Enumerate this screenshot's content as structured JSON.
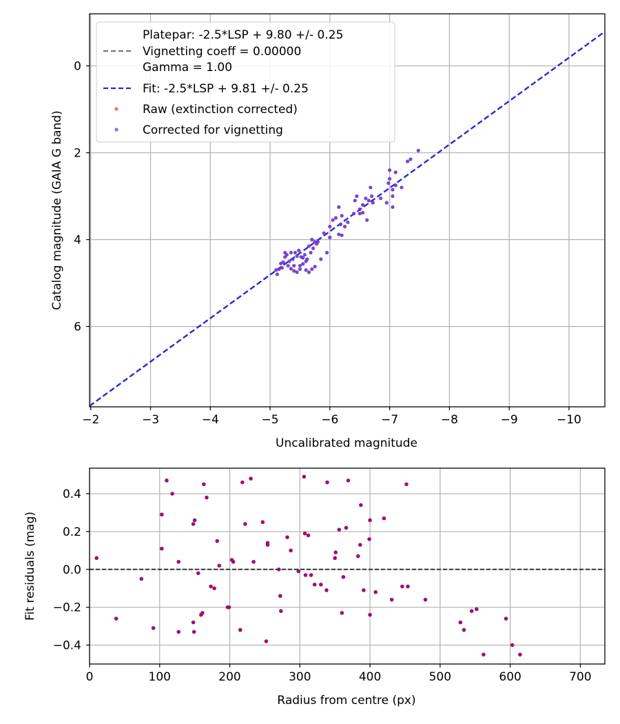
{
  "colors": {
    "fit_line": "#2727d6",
    "platepar_line": "#777777",
    "raw_points": "#ff3030",
    "corrected_points": "#3b3bff",
    "overlap_points": "#5a10c0",
    "residual_points": "#a0106a",
    "zero_line": "#333333",
    "grid": "#b0b0b0"
  },
  "chart_data": [
    {
      "type": "scatter",
      "xlabel": "Uncalibrated magnitude",
      "ylabel": "Catalog magnitude (GAIA G band)",
      "xlim": [
        -1.98,
        -10.6
      ],
      "ylim": [
        -1.2,
        7.85
      ],
      "x_ticks": [
        -2,
        -3,
        -4,
        -5,
        -6,
        -7,
        -8,
        -9,
        -10
      ],
      "x_tick_labels": [
        "−2",
        "−3",
        "−4",
        "−5",
        "−6",
        "−7",
        "−8",
        "−9",
        "−10"
      ],
      "y_ticks": [
        0,
        2,
        4,
        6
      ],
      "y_tick_labels": [
        "0",
        "2",
        "4",
        "6"
      ],
      "grid": true,
      "legend": {
        "position": "upper-left",
        "entries": [
          {
            "label": "Platepar: -2.5*LSP + 9.80 +/- 0.25",
            "kind": "none"
          },
          {
            "label": "Vignetting coeff = 0.00000",
            "kind": "gray-dashed"
          },
          {
            "label": "Gamma = 1.00",
            "kind": "none"
          },
          {
            "label": "Fit: -2.5*LSP + 9.81 +/- 0.25",
            "kind": "blue-dashed"
          },
          {
            "label": "Raw (extinction corrected)",
            "kind": "red-dot"
          },
          {
            "label": "Corrected for vignetting",
            "kind": "blue-dot"
          }
        ]
      },
      "fit": {
        "slope": 1.0,
        "intercept": 9.81
      },
      "platepar": {
        "slope": 1.0,
        "intercept": 9.8
      },
      "points": [
        [
          -5.1,
          4.7
        ],
        [
          -5.15,
          4.68
        ],
        [
          -5.2,
          4.65
        ],
        [
          -5.25,
          4.3
        ],
        [
          -5.18,
          4.55
        ],
        [
          -5.22,
          4.52
        ],
        [
          -5.3,
          4.6
        ],
        [
          -5.35,
          4.67
        ],
        [
          -5.4,
          4.72
        ],
        [
          -5.45,
          4.75
        ],
        [
          -5.5,
          4.6
        ],
        [
          -5.55,
          4.56
        ],
        [
          -5.6,
          4.7
        ],
        [
          -5.65,
          4.75
        ],
        [
          -5.7,
          4.68
        ],
        [
          -5.75,
          4.62
        ],
        [
          -5.12,
          4.8
        ],
        [
          -5.28,
          4.35
        ],
        [
          -5.32,
          4.5
        ],
        [
          -5.38,
          4.45
        ],
        [
          -5.42,
          4.3
        ],
        [
          -5.48,
          4.25
        ],
        [
          -5.52,
          4.4
        ],
        [
          -5.58,
          4.35
        ],
        [
          -5.62,
          4.45
        ],
        [
          -5.68,
          4.3
        ],
        [
          -5.72,
          4.2
        ],
        [
          -5.78,
          4.1
        ],
        [
          -5.8,
          4.05
        ],
        [
          -5.85,
          4.45
        ],
        [
          -5.65,
          4.15
        ],
        [
          -5.7,
          4.0
        ],
        [
          -5.75,
          4.05
        ],
        [
          -5.6,
          4.5
        ],
        [
          -5.55,
          4.42
        ],
        [
          -5.45,
          4.38
        ],
        [
          -5.35,
          4.3
        ],
        [
          -5.25,
          4.4
        ],
        [
          -5.4,
          4.6
        ],
        [
          -5.5,
          4.68
        ],
        [
          -5.9,
          3.85
        ],
        [
          -5.95,
          4.3
        ],
        [
          -6.0,
          3.7
        ],
        [
          -6.05,
          3.55
        ],
        [
          -6.1,
          3.5
        ],
        [
          -6.15,
          3.25
        ],
        [
          -6.2,
          3.45
        ],
        [
          -6.25,
          3.7
        ],
        [
          -6.2,
          3.9
        ],
        [
          -6.15,
          3.88
        ],
        [
          -6.0,
          3.95
        ],
        [
          -6.4,
          3.4
        ],
        [
          -6.45,
          3.0
        ],
        [
          -6.5,
          3.3
        ],
        [
          -6.55,
          3.2
        ],
        [
          -6.6,
          3.05
        ],
        [
          -6.65,
          3.1
        ],
        [
          -6.7,
          3.0
        ],
        [
          -6.62,
          3.55
        ],
        [
          -6.5,
          3.4
        ],
        [
          -6.42,
          3.1
        ],
        [
          -6.68,
          2.8
        ],
        [
          -6.55,
          3.38
        ],
        [
          -6.72,
          3.15
        ],
        [
          -6.3,
          3.6
        ],
        [
          -6.18,
          3.65
        ],
        [
          -6.95,
          3.15
        ],
        [
          -7.0,
          2.6
        ],
        [
          -7.05,
          2.85
        ],
        [
          -7.0,
          2.4
        ],
        [
          -7.05,
          3.0
        ],
        [
          -7.1,
          2.75
        ],
        [
          -7.1,
          2.45
        ],
        [
          -7.2,
          2.8
        ],
        [
          -7.3,
          2.2
        ],
        [
          -7.35,
          2.15
        ],
        [
          -7.48,
          1.95
        ],
        [
          -7.05,
          3.25
        ],
        [
          -6.98,
          2.7
        ],
        [
          -6.85,
          3.05
        ]
      ]
    },
    {
      "type": "scatter",
      "xlabel": "Radius from centre (px)",
      "ylabel": "Fit residuals (mag)",
      "xlim": [
        0,
        735
      ],
      "ylim": [
        -0.5,
        0.535
      ],
      "x_ticks": [
        0,
        100,
        200,
        300,
        400,
        500,
        600,
        700
      ],
      "x_tick_labels": [
        "0",
        "100",
        "200",
        "300",
        "400",
        "500",
        "600",
        "700"
      ],
      "y_ticks": [
        -0.4,
        -0.2,
        0.0,
        0.2,
        0.4
      ],
      "y_tick_labels": [
        "−0.4",
        "−0.2",
        "0.0",
        "0.2",
        "0.4"
      ],
      "grid": true,
      "zero_line": 0.0,
      "points": [
        [
          10,
          0.06
        ],
        [
          38,
          -0.26
        ],
        [
          74,
          -0.05
        ],
        [
          91,
          -0.31
        ],
        [
          103,
          0.29
        ],
        [
          103,
          0.11
        ],
        [
          110,
          0.47
        ],
        [
          118,
          0.4
        ],
        [
          127,
          0.04
        ],
        [
          127,
          -0.33
        ],
        [
          148,
          0.24
        ],
        [
          149,
          -0.33
        ],
        [
          150,
          0.26
        ],
        [
          148,
          -0.28
        ],
        [
          155,
          -0.02
        ],
        [
          159,
          -0.24
        ],
        [
          161,
          -0.23
        ],
        [
          163,
          0.45
        ],
        [
          167,
          0.38
        ],
        [
          173,
          -0.09
        ],
        [
          178,
          -0.1
        ],
        [
          182,
          0.15
        ],
        [
          185,
          0.02
        ],
        [
          197,
          -0.2
        ],
        [
          199,
          -0.2
        ],
        [
          203,
          0.05
        ],
        [
          205,
          0.04
        ],
        [
          215,
          -0.32
        ],
        [
          218,
          0.46
        ],
        [
          222,
          0.24
        ],
        [
          230,
          0.48
        ],
        [
          234,
          0.04
        ],
        [
          247,
          0.25
        ],
        [
          252,
          -0.38
        ],
        [
          254,
          0.14
        ],
        [
          254,
          0.13
        ],
        [
          270,
          0.0
        ],
        [
          272,
          -0.14
        ],
        [
          273,
          -0.22
        ],
        [
          282,
          0.17
        ],
        [
          287,
          0.1
        ],
        [
          298,
          -0.01
        ],
        [
          306,
          0.49
        ],
        [
          307,
          0.19
        ],
        [
          308,
          -0.03
        ],
        [
          312,
          0.18
        ],
        [
          316,
          -0.03
        ],
        [
          321,
          -0.08
        ],
        [
          330,
          -0.08
        ],
        [
          338,
          -0.11
        ],
        [
          339,
          0.46
        ],
        [
          350,
          0.06
        ],
        [
          351,
          0.09
        ],
        [
          356,
          0.21
        ],
        [
          360,
          -0.23
        ],
        [
          362,
          -0.04
        ],
        [
          366,
          0.22
        ],
        [
          369,
          0.47
        ],
        [
          383,
          0.07
        ],
        [
          386,
          0.13
        ],
        [
          387,
          0.34
        ],
        [
          391,
          -0.11
        ],
        [
          399,
          0.16
        ],
        [
          400,
          0.26
        ],
        [
          400,
          -0.24
        ],
        [
          408,
          -0.12
        ],
        [
          420,
          0.27
        ],
        [
          431,
          -0.16
        ],
        [
          446,
          -0.09
        ],
        [
          452,
          0.45
        ],
        [
          454,
          -0.09
        ],
        [
          479,
          -0.16
        ],
        [
          529,
          -0.28
        ],
        [
          534,
          -0.32
        ],
        [
          545,
          -0.22
        ],
        [
          552,
          -0.21
        ],
        [
          562,
          -0.45
        ],
        [
          594,
          -0.26
        ],
        [
          603,
          -0.4
        ],
        [
          614,
          -0.45
        ]
      ]
    }
  ]
}
